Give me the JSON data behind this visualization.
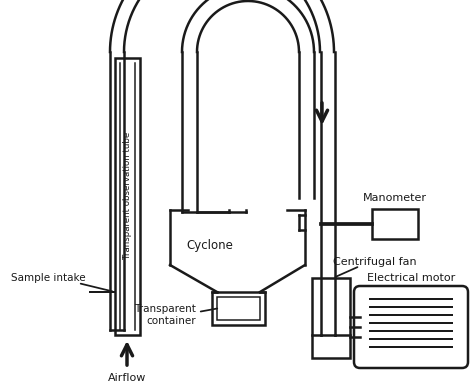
{
  "bg_color": "#ffffff",
  "line_color": "#1a1a1a",
  "lw": 1.8,
  "labels": {
    "transparent_tube": "Transparent observation tube",
    "cyclone": "Cyclone",
    "sample_intake": "Sample intake",
    "airflow": "Airflow",
    "transparent_container": "Transparent\ncontainer",
    "manometer": "Manometer",
    "centrifugal_fan": "Centrifugal fan",
    "electrical_motor": "Electrical motor"
  }
}
